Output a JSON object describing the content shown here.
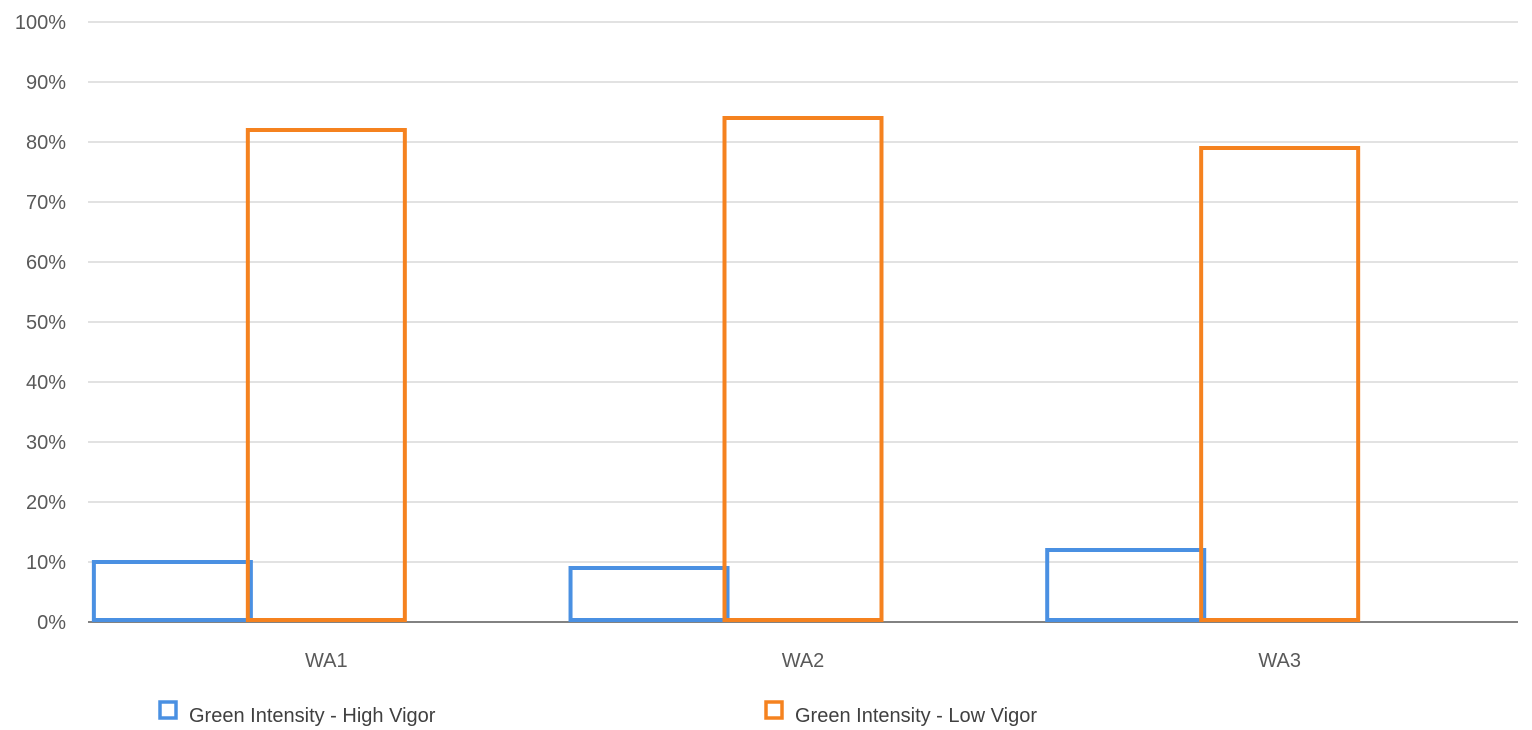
{
  "chart_data": {
    "type": "bar",
    "title": "",
    "xlabel": "",
    "ylabel": "",
    "categories": [
      "WA1",
      "WA2",
      "WA3"
    ],
    "series": [
      {
        "name": "Green Intensity - High Vigor",
        "values": [
          10,
          9,
          12
        ],
        "color": "#4a90e2"
      },
      {
        "name": "Green Intensity - Low Vigor",
        "values": [
          82,
          84,
          79
        ],
        "color": "#f5821f"
      }
    ],
    "ylim": [
      0,
      100
    ],
    "yticks": [
      "0%",
      "10%",
      "20%",
      "30%",
      "40%",
      "50%",
      "60%",
      "70%",
      "80%",
      "90%",
      "100%"
    ],
    "bar_style": "outline",
    "grid": true,
    "legend_position": "bottom"
  }
}
